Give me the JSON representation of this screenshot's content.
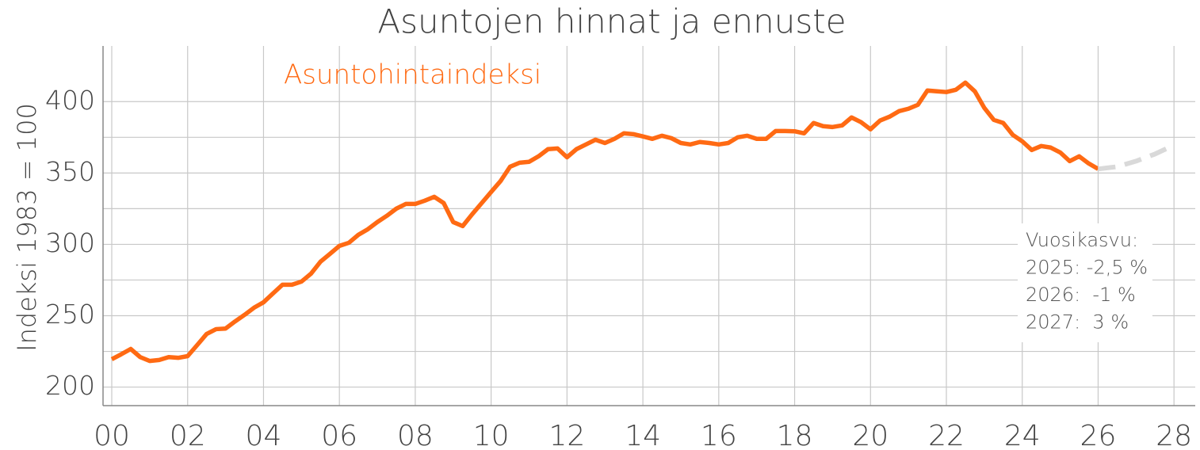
{
  "chart_data": {
    "type": "line",
    "title": "Asuntojen hinnat ja ennuste",
    "y_label": "Indeksi 1983 = 100",
    "series": [
      {
        "name": "Asuntohintaindeksi",
        "color": "#ff6a13",
        "x": [
          0,
          0.25,
          0.5,
          0.75,
          1,
          1.25,
          1.5,
          1.75,
          2,
          2.25,
          2.5,
          2.75,
          3,
          3.25,
          3.5,
          3.75,
          4,
          4.25,
          4.5,
          4.75,
          5,
          5.25,
          5.5,
          5.75,
          6,
          6.25,
          6.5,
          6.75,
          7,
          7.25,
          7.5,
          7.75,
          8,
          8.25,
          8.5,
          8.75,
          9,
          9.25,
          9.5,
          9.75,
          10,
          10.25,
          10.5,
          10.75,
          11,
          11.25,
          11.5,
          11.75,
          12,
          12.25,
          12.5,
          12.75,
          13,
          13.25,
          13.5,
          13.75,
          14,
          14.25,
          14.5,
          14.75,
          15,
          15.25,
          15.5,
          15.75,
          16,
          16.25,
          16.5,
          16.75,
          17,
          17.25,
          17.5,
          17.75,
          18,
          18.25,
          18.5,
          18.75,
          19,
          19.25,
          19.5,
          19.75,
          20,
          20.25,
          20.5,
          20.75,
          21,
          21.25,
          21.5,
          21.75,
          22,
          22.25,
          22.5,
          22.75,
          23,
          23.25,
          23.5,
          23.75,
          24,
          24.25,
          24.5,
          24.75,
          25,
          25.25,
          25.5,
          25.75,
          26
        ],
        "values": [
          219.5,
          223,
          226.7,
          221,
          218.3,
          219,
          221,
          220.5,
          221.7,
          229.4,
          237.2,
          240.6,
          241,
          246,
          250.6,
          255.6,
          259.4,
          265.6,
          271.7,
          271.7,
          273.9,
          279.4,
          287.8,
          293.3,
          298.9,
          301.1,
          306.7,
          310.6,
          315.6,
          320,
          325,
          328.3,
          328.3,
          330.6,
          333.3,
          328.9,
          315.6,
          312.8,
          321.1,
          328.9,
          336.7,
          344.4,
          354.4,
          357.2,
          357.8,
          361.7,
          366.7,
          367.2,
          361,
          366.7,
          370,
          373.3,
          371,
          373.9,
          377.8,
          377.2,
          375.6,
          373.9,
          376.1,
          374.4,
          371,
          370,
          371.7,
          371,
          370,
          371,
          375,
          376.1,
          373.9,
          373.9,
          379.4,
          379.4,
          379.2,
          377.8,
          385,
          382.8,
          382.2,
          383.3,
          388.9,
          385.6,
          380.6,
          386.7,
          389.4,
          393.3,
          395,
          397.8,
          407.8,
          407.2,
          406.7,
          408.3,
          413.3,
          407.2,
          395.6,
          387.2,
          385,
          376.7,
          372.2,
          366.1,
          368.9,
          367.8,
          364.4,
          358.3,
          361.7,
          356.7,
          352.8
        ]
      },
      {
        "color": "#d9d9d9",
        "dashed": true,
        "x": [
          26,
          26.5,
          27,
          27.5,
          28
        ],
        "values": [
          352.8,
          354.4,
          358.3,
          363.3,
          369.5
        ]
      }
    ],
    "xlim": [
      -0.23,
      28.56
    ],
    "ylim": [
      187,
      439
    ],
    "xticks": [
      {
        "value": 0,
        "label": "00"
      },
      {
        "value": 2,
        "label": "02"
      },
      {
        "value": 4,
        "label": "04"
      },
      {
        "value": 6,
        "label": "06"
      },
      {
        "value": 8,
        "label": "08"
      },
      10,
      12,
      14,
      16,
      18,
      20,
      22,
      24,
      26,
      28
    ],
    "yticks": [
      200,
      250,
      300,
      350,
      400
    ],
    "y_minor_grid": [
      225,
      275,
      325,
      375
    ],
    "grid": true,
    "annotation": [
      "Vuosikasvu:",
      "2025: -2,5 %",
      "2026:  -1 %",
      "2027:  3 %"
    ]
  }
}
